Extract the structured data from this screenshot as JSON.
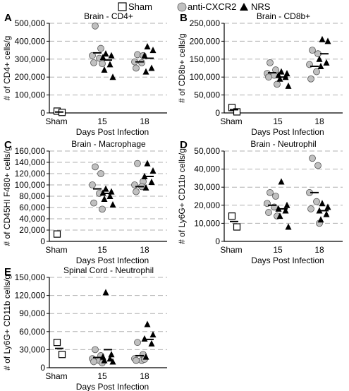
{
  "legend": {
    "items": [
      {
        "label": "Sham",
        "marker": "square",
        "fill": "#ffffff"
      },
      {
        "label": "anti-CXCR2",
        "marker": "circle",
        "fill": "#c0c0c0"
      },
      {
        "label": "NRS",
        "marker": "triangle",
        "fill": "#000000"
      }
    ]
  },
  "colors": {
    "circle_fill": "#c0c0c0",
    "triangle_fill": "#000000",
    "square_fill": "#ffffff",
    "grid": "#b0b0b0"
  },
  "chart_data": [
    {
      "panel": "A",
      "type": "scatter",
      "title": "Brain - CD4+",
      "ylabel": "# of CD4+ cells/g",
      "xlabel": "Days Post Infection",
      "ylim": [
        0,
        500000
      ],
      "grid": "dashed horizontal",
      "yticks": [
        "0",
        "100,000",
        "200,000",
        "300,000",
        "400,000",
        "500,000"
      ],
      "categories": [
        "Sham",
        "15",
        "18"
      ],
      "series": [
        {
          "name": "Sham",
          "points": [
            {
              "x": "Sham",
              "y": 10000
            },
            {
              "x": "Sham",
              "y": 3000
            }
          ],
          "mean": 5000
        },
        {
          "name": "anti-CXCR2 day 15",
          "points": [
            {
              "x": "15",
              "y": 485000
            },
            {
              "x": "15",
              "y": 360000
            },
            {
              "x": "15",
              "y": 320000
            },
            {
              "x": "15",
              "y": 305000
            },
            {
              "x": "15",
              "y": 280000
            },
            {
              "x": "15",
              "y": 275000
            }
          ],
          "mean": 335000
        },
        {
          "name": "NRS day 15",
          "points": [
            {
              "x": "15",
              "y": 330000
            },
            {
              "x": "15",
              "y": 320000
            },
            {
              "x": "15",
              "y": 310000
            },
            {
              "x": "15",
              "y": 270000
            },
            {
              "x": "15",
              "y": 240000
            },
            {
              "x": "15",
              "y": 200000
            }
          ],
          "mean": 295000
        },
        {
          "name": "anti-CXCR2 day 18",
          "points": [
            {
              "x": "18",
              "y": 325000
            },
            {
              "x": "18",
              "y": 320000
            },
            {
              "x": "18",
              "y": 285000
            },
            {
              "x": "18",
              "y": 280000
            },
            {
              "x": "18",
              "y": 250000
            }
          ],
          "mean": 285000
        },
        {
          "name": "NRS day 18",
          "points": [
            {
              "x": "18",
              "y": 370000
            },
            {
              "x": "18",
              "y": 350000
            },
            {
              "x": "18",
              "y": 320000
            },
            {
              "x": "18",
              "y": 250000
            },
            {
              "x": "18",
              "y": 230000
            }
          ],
          "mean": 305000
        }
      ]
    },
    {
      "panel": "B",
      "type": "scatter",
      "title": "Brain - CD8b+",
      "ylabel": "# of CD8b+ cells/g",
      "xlabel": "Days Post Infection",
      "ylim": [
        0,
        250000
      ],
      "grid": "dashed horizontal",
      "yticks": [
        "0",
        "50,000",
        "100,000",
        "150,000",
        "200,000",
        "250,000"
      ],
      "categories": [
        "Sham",
        "15",
        "18"
      ],
      "series": [
        {
          "name": "Sham",
          "points": [
            {
              "x": "Sham",
              "y": 15000
            },
            {
              "x": "Sham",
              "y": 3000
            }
          ],
          "mean": 9000
        },
        {
          "name": "anti-CXCR2 day 15",
          "points": [
            {
              "x": "15",
              "y": 140000
            },
            {
              "x": "15",
              "y": 120000
            },
            {
              "x": "15",
              "y": 110000
            },
            {
              "x": "15",
              "y": 105000
            },
            {
              "x": "15",
              "y": 100000
            },
            {
              "x": "15",
              "y": 80000
            }
          ],
          "mean": 112000
        },
        {
          "name": "NRS day 15",
          "points": [
            {
              "x": "15",
              "y": 115000
            },
            {
              "x": "15",
              "y": 110000
            },
            {
              "x": "15",
              "y": 105000
            },
            {
              "x": "15",
              "y": 100000
            },
            {
              "x": "15",
              "y": 95000
            },
            {
              "x": "15",
              "y": 75000
            }
          ],
          "mean": 100000
        },
        {
          "name": "anti-CXCR2 day 18",
          "points": [
            {
              "x": "18",
              "y": 175000
            },
            {
              "x": "18",
              "y": 165000
            },
            {
              "x": "18",
              "y": 135000
            },
            {
              "x": "18",
              "y": 115000
            },
            {
              "x": "18",
              "y": 95000
            }
          ],
          "mean": 130000
        },
        {
          "name": "NRS day 18",
          "points": [
            {
              "x": "18",
              "y": 205000
            },
            {
              "x": "18",
              "y": 200000
            },
            {
              "x": "18",
              "y": 150000
            },
            {
              "x": "18",
              "y": 140000
            },
            {
              "x": "18",
              "y": 130000
            }
          ],
          "mean": 165000
        }
      ]
    },
    {
      "panel": "C",
      "type": "scatter",
      "title": "Brain - Macrophage",
      "ylabel": "# of CD45HI F480+ cells/g",
      "xlabel": "Days Post Infection",
      "ylim": [
        0,
        160000
      ],
      "grid": "dashed horizontal",
      "yticks": [
        "0",
        "20,000",
        "40,000",
        "60,000",
        "80,000",
        "100,000",
        "120,000",
        "140,000",
        "160,000"
      ],
      "categories": [
        "Sham",
        "15",
        "18"
      ],
      "series": [
        {
          "name": "Sham",
          "points": [
            {
              "x": "Sham",
              "y": 13000
            }
          ],
          "mean": null
        },
        {
          "name": "anti-CXCR2 day 15",
          "points": [
            {
              "x": "15",
              "y": 132000
            },
            {
              "x": "15",
              "y": 120000
            },
            {
              "x": "15",
              "y": 100000
            },
            {
              "x": "15",
              "y": 85000
            },
            {
              "x": "15",
              "y": 68000
            },
            {
              "x": "15",
              "y": 57000
            }
          ],
          "mean": 93000
        },
        {
          "name": "NRS day 15",
          "points": [
            {
              "x": "15",
              "y": 93000
            },
            {
              "x": "15",
              "y": 88000
            },
            {
              "x": "15",
              "y": 86000
            },
            {
              "x": "15",
              "y": 80000
            },
            {
              "x": "15",
              "y": 75000
            },
            {
              "x": "15",
              "y": 65000
            }
          ],
          "mean": 85000
        },
        {
          "name": "anti-CXCR2 day 18",
          "points": [
            {
              "x": "18",
              "y": 138000
            },
            {
              "x": "18",
              "y": 106000
            },
            {
              "x": "18",
              "y": 100000
            },
            {
              "x": "18",
              "y": 97000
            },
            {
              "x": "18",
              "y": 88000
            }
          ],
          "mean": 97000
        },
        {
          "name": "NRS day 18",
          "points": [
            {
              "x": "18",
              "y": 138000
            },
            {
              "x": "18",
              "y": 125000
            },
            {
              "x": "18",
              "y": 115000
            },
            {
              "x": "18",
              "y": 105000
            },
            {
              "x": "18",
              "y": 95000
            }
          ],
          "mean": 115000
        }
      ]
    },
    {
      "panel": "D",
      "type": "scatter",
      "title": "Brain - Neutrophil",
      "ylabel": "# of Ly6G+ CD11b cells/g",
      "xlabel": "Days Post Infection",
      "ylim": [
        0,
        50000
      ],
      "grid": "dashed horizontal",
      "yticks": [
        "0",
        "10,000",
        "20,000",
        "30,000",
        "40,000",
        "50,000"
      ],
      "categories": [
        "Sham",
        "15",
        "18"
      ],
      "series": [
        {
          "name": "Sham",
          "points": [
            {
              "x": "Sham",
              "y": 14000
            },
            {
              "x": "Sham",
              "y": 8000
            }
          ],
          "mean": 11000
        },
        {
          "name": "anti-CXCR2 day 15",
          "points": [
            {
              "x": "15",
              "y": 27000
            },
            {
              "x": "15",
              "y": 25000
            },
            {
              "x": "15",
              "y": 21000
            },
            {
              "x": "15",
              "y": 19000
            },
            {
              "x": "15",
              "y": 16000
            },
            {
              "x": "15",
              "y": 14000
            }
          ],
          "mean": 20000
        },
        {
          "name": "NRS day 15",
          "points": [
            {
              "x": "15",
              "y": 33000
            },
            {
              "x": "15",
              "y": 20000
            },
            {
              "x": "15",
              "y": 18000
            },
            {
              "x": "15",
              "y": 17000
            },
            {
              "x": "15",
              "y": 14000
            },
            {
              "x": "15",
              "y": 8000
            }
          ],
          "mean": 18000
        },
        {
          "name": "anti-CXCR2 day 18",
          "points": [
            {
              "x": "18",
              "y": 46000
            },
            {
              "x": "18",
              "y": 42000
            },
            {
              "x": "18",
              "y": 27000
            },
            {
              "x": "18",
              "y": 22000
            },
            {
              "x": "18",
              "y": 18000
            },
            {
              "x": "18",
              "y": 10000
            }
          ],
          "mean": 27000
        },
        {
          "name": "NRS day 18",
          "points": [
            {
              "x": "18",
              "y": 21000
            },
            {
              "x": "18",
              "y": 19000
            },
            {
              "x": "18",
              "y": 17000
            },
            {
              "x": "18",
              "y": 15000
            },
            {
              "x": "18",
              "y": 12000
            }
          ],
          "mean": 17000
        }
      ]
    },
    {
      "panel": "E",
      "type": "scatter",
      "title": "Spinal Cord - Neutrophil",
      "ylabel": "# of Ly6G+ CD11b cells/g",
      "xlabel": "Days Post Infection",
      "ylim": [
        0,
        150000
      ],
      "grid": "dashed horizontal",
      "yticks": [
        "0",
        "30,000",
        "60,000",
        "90,000",
        "120,000",
        "150,000"
      ],
      "categories": [
        "Sham",
        "15",
        "18"
      ],
      "series": [
        {
          "name": "Sham",
          "points": [
            {
              "x": "Sham",
              "y": 42000
            },
            {
              "x": "Sham",
              "y": 22000
            }
          ],
          "mean": 32000
        },
        {
          "name": "anti-CXCR2 day 15",
          "points": [
            {
              "x": "15",
              "y": 30000
            },
            {
              "x": "15",
              "y": 20000
            },
            {
              "x": "15",
              "y": 15000
            },
            {
              "x": "15",
              "y": 12000
            },
            {
              "x": "15",
              "y": 10000
            },
            {
              "x": "15",
              "y": 8000
            }
          ],
          "mean": 17000
        },
        {
          "name": "NRS day 15",
          "points": [
            {
              "x": "15",
              "y": 125000
            },
            {
              "x": "15",
              "y": 22000
            },
            {
              "x": "15",
              "y": 18000
            },
            {
              "x": "15",
              "y": 15000
            },
            {
              "x": "15",
              "y": 12000
            },
            {
              "x": "15",
              "y": 10000
            }
          ],
          "mean": 30000
        },
        {
          "name": "anti-CXCR2 day 18",
          "points": [
            {
              "x": "18",
              "y": 42000
            },
            {
              "x": "18",
              "y": 22000
            },
            {
              "x": "18",
              "y": 15000
            },
            {
              "x": "18",
              "y": 12000
            },
            {
              "x": "18",
              "y": 12000
            },
            {
              "x": "18",
              "y": 14000
            }
          ],
          "mean": 20000
        },
        {
          "name": "NRS day 18",
          "points": [
            {
              "x": "18",
              "y": 72000
            },
            {
              "x": "18",
              "y": 55000
            },
            {
              "x": "18",
              "y": 48000
            },
            {
              "x": "18",
              "y": 40000
            },
            {
              "x": "18",
              "y": 18000
            }
          ],
          "mean": 47000
        }
      ]
    }
  ]
}
